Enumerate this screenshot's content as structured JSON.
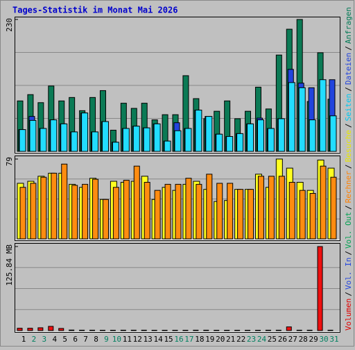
{
  "title": "Tages-Statistik im Monat Mai 2026",
  "separator": "/",
  "legend": [
    {
      "name": "Volumen",
      "color": "#e00000"
    },
    {
      "name": "Vol. In",
      "color": "#2244dd"
    },
    {
      "name": "Vol. Out",
      "color": "#00a050"
    },
    {
      "name": "Rechner",
      "color": "#ff8000"
    },
    {
      "name": "Besuche",
      "color": "#e8e800"
    },
    {
      "name": "Seiten",
      "color": "#00c8f0"
    },
    {
      "name": "Dateien",
      "color": "#2244dd"
    },
    {
      "name": "Anfragen",
      "color": "#007a55"
    }
  ],
  "x_label_colors": [
    "#000000",
    "#008060",
    "#008060",
    "#000000",
    "#000000",
    "#000000",
    "#000000",
    "#000000",
    "#008060",
    "#008060",
    "#000000",
    "#000000",
    "#000000",
    "#000000",
    "#000000",
    "#008060",
    "#008060",
    "#000000",
    "#000000",
    "#000000",
    "#000000",
    "#000000",
    "#008060",
    "#008060",
    "#000000",
    "#000000",
    "#000000",
    "#000000",
    "#000000",
    "#008060",
    "#008060"
  ],
  "chart_data": [
    {
      "type": "bar",
      "categories": [
        "1",
        "2",
        "3",
        "4",
        "5",
        "6",
        "7",
        "8",
        "9",
        "10",
        "11",
        "12",
        "13",
        "14",
        "15",
        "16",
        "17",
        "18",
        "19",
        "20",
        "21",
        "22",
        "23",
        "24",
        "25",
        "26",
        "27",
        "28",
        "29",
        "30",
        "31"
      ],
      "ylim": [
        0,
        230
      ],
      "yticks": [
        230
      ],
      "series": [
        {
          "name": "Anfragen",
          "color": "#0b7a55",
          "values": [
            88,
            99,
            85,
            114,
            88,
            94,
            71,
            94,
            106,
            37,
            84,
            75,
            84,
            55,
            64,
            64,
            132,
            92,
            57,
            70,
            88,
            57,
            70,
            112,
            74,
            168,
            213,
            230,
            87,
            172,
            91
          ]
        },
        {
          "name": "Dateien",
          "color": "#2244dd",
          "values": [
            38,
            61,
            40,
            55,
            48,
            34,
            67,
            34,
            52,
            16,
            40,
            44,
            41,
            48,
            18,
            50,
            40,
            72,
            61,
            30,
            26,
            31,
            48,
            58,
            40,
            57,
            143,
            119,
            111,
            55,
            125
          ]
        },
        {
          "name": "Seiten",
          "color": "#22ddff",
          "values": [
            38,
            54,
            40,
            55,
            48,
            34,
            67,
            34,
            52,
            16,
            40,
            44,
            41,
            48,
            18,
            36,
            40,
            72,
            61,
            30,
            26,
            31,
            48,
            55,
            40,
            57,
            120,
            111,
            55,
            125,
            62
          ]
        }
      ]
    },
    {
      "type": "bar",
      "categories": [
        "1",
        "2",
        "3",
        "4",
        "5",
        "6",
        "7",
        "8",
        "9",
        "10",
        "11",
        "12",
        "13",
        "14",
        "15",
        "16",
        "17",
        "18",
        "19",
        "20",
        "21",
        "22",
        "23",
        "24",
        "25",
        "26",
        "27",
        "28",
        "29",
        "30",
        "31"
      ],
      "ylim": [
        0,
        79
      ],
      "yticks": [
        79
      ],
      "series": [
        {
          "name": "Besuche",
          "color": "#ffff20",
          "values": [
            55,
            57,
            62,
            65,
            65,
            54,
            51,
            60,
            39,
            57,
            56,
            57,
            62,
            39,
            51,
            48,
            54,
            57,
            49,
            37,
            38,
            49,
            49,
            64,
            51,
            79,
            70,
            56,
            48,
            78,
            70
          ]
        },
        {
          "name": "Rechner",
          "color": "#ff8c10",
          "values": [
            51,
            55,
            61,
            65,
            74,
            53,
            54,
            59,
            39,
            51,
            58,
            72,
            56,
            48,
            54,
            54,
            60,
            54,
            64,
            55,
            55,
            49,
            49,
            62,
            62,
            62,
            56,
            48,
            45,
            72,
            61
          ]
        }
      ]
    },
    {
      "type": "bar",
      "categories": [
        "1",
        "2",
        "3",
        "4",
        "5",
        "6",
        "7",
        "8",
        "9",
        "10",
        "11",
        "12",
        "13",
        "14",
        "15",
        "16",
        "17",
        "18",
        "19",
        "20",
        "21",
        "22",
        "23",
        "24",
        "25",
        "26",
        "27",
        "28",
        "29",
        "30",
        "31"
      ],
      "ylim": [
        0,
        125.84
      ],
      "yticks": [
        {
          "value": 125.84,
          "label": "125.84 MB"
        }
      ],
      "series": [
        {
          "name": "Volumen",
          "color": "#ee1010",
          "values": [
            3.5,
            3.5,
            4.2,
            6.3,
            3.2,
            0.8,
            0.6,
            0.6,
            0.5,
            0.5,
            0.6,
            0.6,
            0.6,
            0.5,
            0.5,
            0.5,
            0.5,
            0.6,
            0.6,
            0.5,
            0.5,
            0.5,
            0.5,
            0.5,
            0.6,
            0.6,
            5.5,
            0.6,
            0.6,
            125.84,
            0.6
          ]
        }
      ]
    }
  ]
}
